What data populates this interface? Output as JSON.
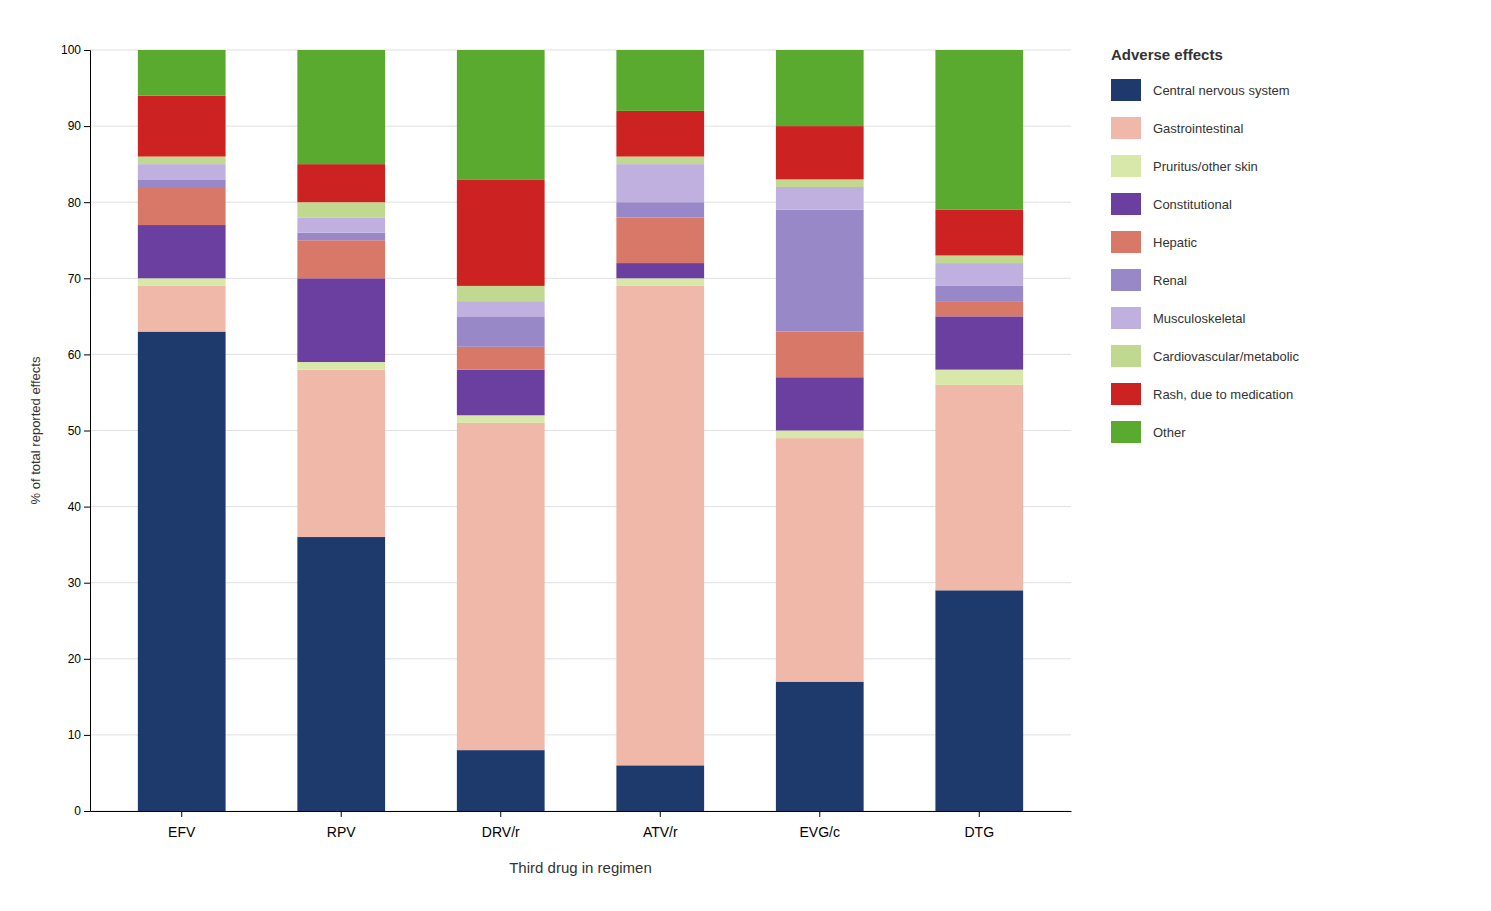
{
  "chart_data": {
    "type": "bar",
    "stacked": true,
    "xlabel": "Third drug in regimen",
    "ylabel": "% of total reported effects",
    "legend_title": "Adverse effects",
    "legend": "right",
    "grid": true,
    "categories": [
      "EFV",
      "RPV",
      "DRV/r",
      "ATV/r",
      "EVG/c",
      "DTG"
    ],
    "series": [
      {
        "name": "Central nervous system",
        "color": "#1e3a6c",
        "values": [
          63,
          36,
          8,
          6,
          17,
          29
        ]
      },
      {
        "name": "Gastrointestinal",
        "color": "#f0b8a8",
        "values": [
          6,
          22,
          43,
          63,
          32,
          27
        ]
      },
      {
        "name": "Pruritus/other skin",
        "color": "#d8e8a8",
        "values": [
          1,
          1,
          1,
          1,
          1,
          2
        ]
      },
      {
        "name": "Constitutional",
        "color": "#6b3fa0",
        "values": [
          7,
          11,
          6,
          2,
          7,
          7
        ]
      },
      {
        "name": "Hepatic",
        "color": "#d87868",
        "values": [
          5,
          5,
          3,
          6,
          6,
          2
        ]
      },
      {
        "name": "Renal",
        "color": "#9888c8",
        "values": [
          1,
          1,
          4,
          2,
          16,
          2
        ]
      },
      {
        "name": "Musculoskeletal",
        "color": "#c0b0e0",
        "values": [
          2,
          2,
          2,
          5,
          3,
          3
        ]
      },
      {
        "name": "Cardiovascular/metabolic",
        "color": "#c0d890",
        "values": [
          1,
          2,
          2,
          1,
          1,
          1
        ]
      },
      {
        "name": "Rash, due to medication",
        "color": "#cc2222",
        "values": [
          8,
          5,
          14,
          6,
          7,
          6
        ]
      },
      {
        "name": "Other",
        "color": "#5aaa30",
        "values": [
          6,
          15,
          17,
          8,
          10,
          21
        ]
      }
    ],
    "ylim": [
      0,
      100
    ],
    "yticks": [
      0,
      10,
      20,
      30,
      40,
      50,
      60,
      70,
      80,
      90,
      100
    ]
  }
}
